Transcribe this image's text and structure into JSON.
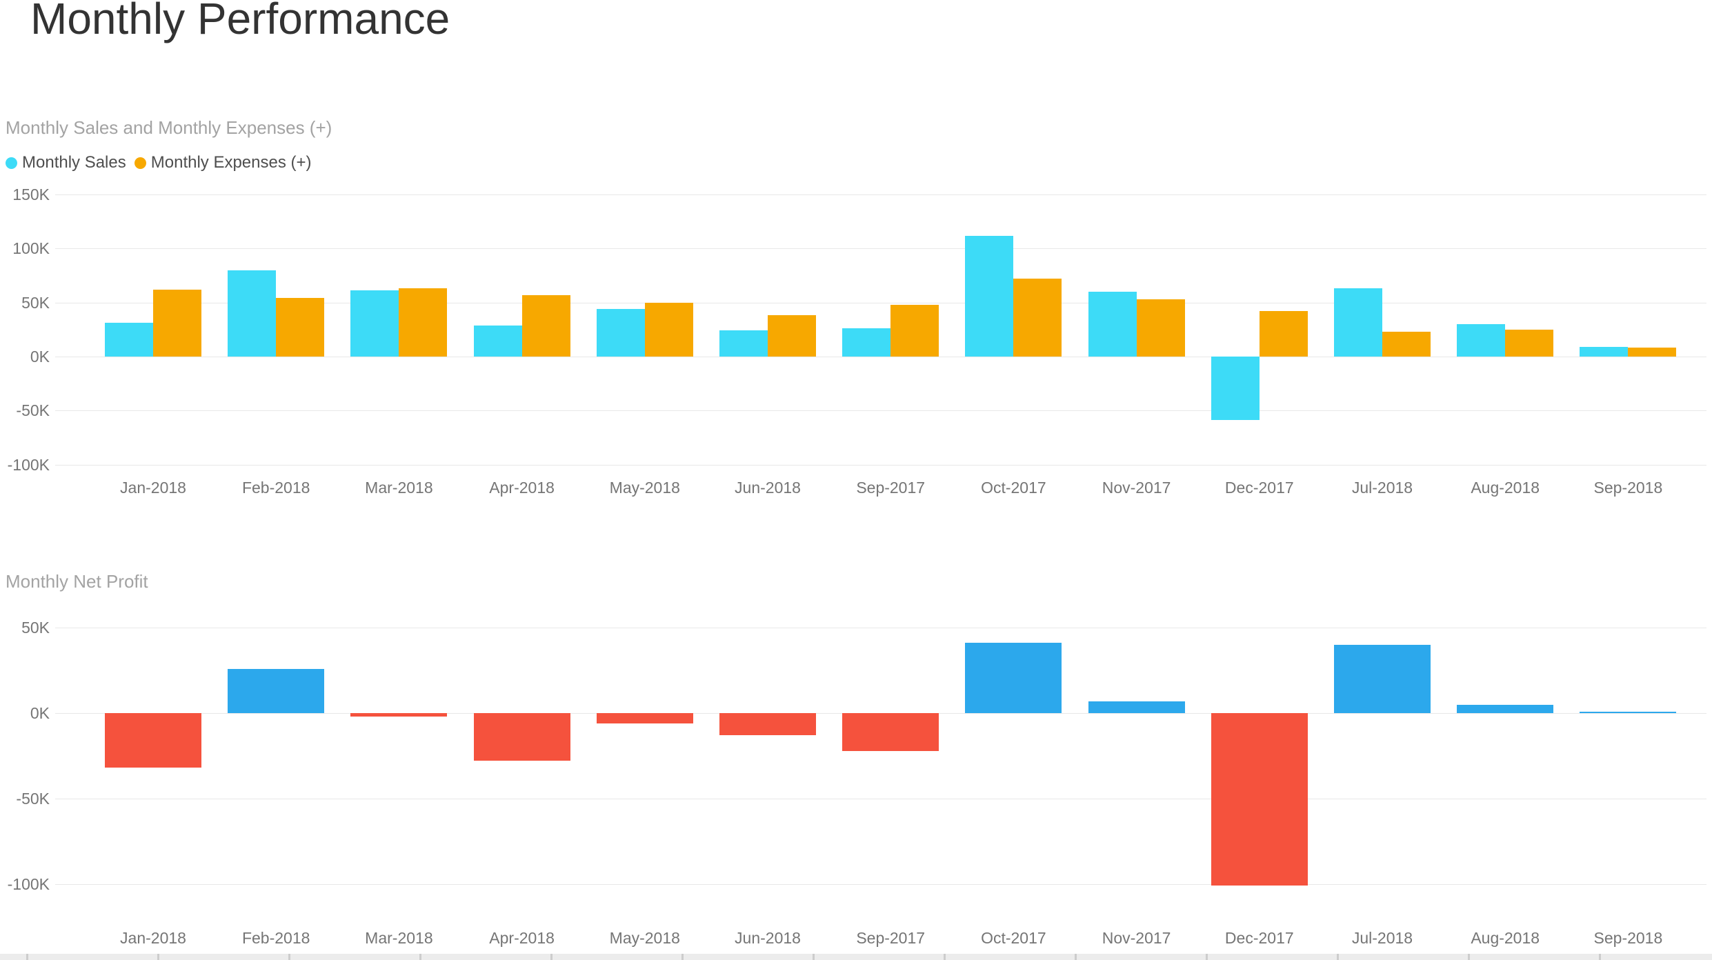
{
  "page": {
    "title": "Monthly Performance"
  },
  "chart_data": [
    {
      "type": "bar",
      "title": "Monthly Sales and Monthly Expenses (+)",
      "unit": "K",
      "categories": [
        "Jan-2018",
        "Feb-2018",
        "Mar-2018",
        "Apr-2018",
        "May-2018",
        "Jun-2018",
        "Sep-2017",
        "Oct-2017",
        "Nov-2017",
        "Dec-2017",
        "Jul-2018",
        "Aug-2018",
        "Sep-2018"
      ],
      "series": [
        {
          "name": "Monthly Sales",
          "color": "#3DDBF7",
          "values": [
            31,
            80,
            61,
            29,
            44,
            24,
            26,
            112,
            60,
            -59,
            63,
            30,
            9
          ]
        },
        {
          "name": "Monthly Expenses (+)",
          "color": "#F7A800",
          "values": [
            62,
            54,
            63,
            57,
            50,
            38,
            48,
            72,
            53,
            42,
            23,
            25,
            8
          ]
        }
      ],
      "legend": [
        {
          "label": "Monthly Sales",
          "color": "#3DDBF7"
        },
        {
          "label": "Monthly Expenses (+)",
          "color": "#F7A800"
        }
      ],
      "legend_position": "top-left",
      "yticks": [
        150,
        100,
        50,
        0,
        -50,
        -100
      ],
      "ylim": [
        -100,
        150
      ],
      "grid": true
    },
    {
      "type": "bar",
      "title": "Monthly Net Profit",
      "unit": "K",
      "categories": [
        "Jan-2018",
        "Feb-2018",
        "Mar-2018",
        "Apr-2018",
        "May-2018",
        "Jun-2018",
        "Sep-2017",
        "Oct-2017",
        "Nov-2017",
        "Dec-2017",
        "Jul-2018",
        "Aug-2018",
        "Sep-2018"
      ],
      "series": [
        {
          "name": "Monthly Net Profit",
          "color_positive": "#2CA8EC",
          "color_negative": "#F5523D",
          "values": [
            -32,
            26,
            -2,
            -28,
            -6,
            -13,
            -22,
            41,
            7,
            -101,
            40,
            5,
            1
          ]
        }
      ],
      "legend": [],
      "legend_position": "none",
      "yticks": [
        50,
        0,
        -50,
        -100
      ],
      "ylim": [
        -110,
        60
      ],
      "grid": true
    }
  ]
}
